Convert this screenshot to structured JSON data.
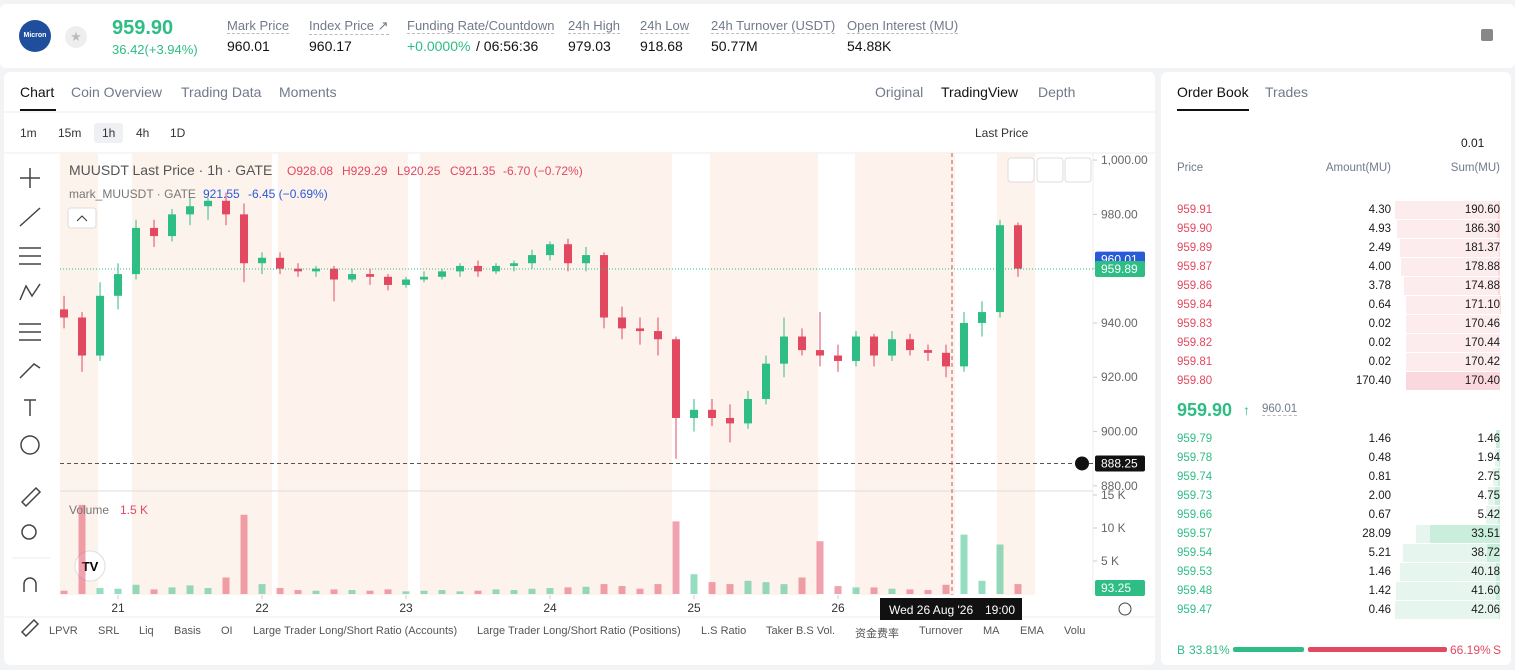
{
  "header": {
    "logo": "Micron",
    "price": "959.90",
    "change": "36.42(+3.94%)",
    "stats": [
      {
        "label": "Mark Price",
        "value": "960.01"
      },
      {
        "label": "Index Price ↗",
        "value": "960.17"
      },
      {
        "label": "Funding Rate/Countdown",
        "value": "+0.0000%",
        "extra": "/ 06:56:36"
      },
      {
        "label": "24h High",
        "value": "979.03"
      },
      {
        "label": "24h Low",
        "value": "918.68"
      },
      {
        "label": "24h Turnover (USDT)",
        "value": "50.77M"
      },
      {
        "label": "Open Interest (MU)",
        "value": "54.88K"
      }
    ]
  },
  "tabs": [
    "Chart",
    "Coin Overview",
    "Trading Data",
    "Moments"
  ],
  "views": [
    "Original",
    "TradingView",
    "Depth"
  ],
  "intervals": [
    "1m",
    "15m",
    "1h",
    "4h",
    "1D"
  ],
  "price_source": "Last Price",
  "indicators": [
    "LPVR",
    "SRL",
    "Liq",
    "Basis",
    "OI",
    "Large Trader Long/Short Ratio (Accounts)",
    "Large Trader Long/Short Ratio (Positions)",
    "L.S Ratio",
    "Taker B.S Vol.",
    "资金费率",
    "Turnover",
    "MA",
    "EMA",
    "Volu"
  ],
  "chart_data": {
    "type": "candlestick",
    "title": "MUUSDT Last Price · 1h · GATE",
    "ohlc_legend": [
      "O928.08",
      "H929.29",
      "L920.25",
      "C921.35",
      "-6.70 (−0.72%)"
    ],
    "mark_legend": [
      "mark_MUUSDT · GATE",
      "921.55",
      "-6.45 (−0.69%)"
    ],
    "volume_label": "Volume",
    "volume_value": "1.5 K",
    "up_color": "#2ebd85",
    "down_color": "#e2485f",
    "x": [
      15,
      18,
      21,
      24,
      27,
      30,
      33,
      36,
      39,
      42,
      45,
      48,
      51,
      54,
      57,
      60,
      63,
      66,
      69,
      72,
      75,
      78,
      81,
      84,
      87,
      90,
      93,
      96,
      99,
      102,
      105,
      108,
      111,
      114,
      117,
      120,
      123,
      126,
      129,
      132,
      135,
      138,
      141,
      144,
      147,
      150,
      153,
      156,
      159,
      162,
      165,
      168,
      171,
      174
    ],
    "xlim": [
      14.33,
      186.5
    ],
    "xticks": [
      {
        "value": 24,
        "label": "21"
      },
      {
        "value": 48,
        "label": "22"
      },
      {
        "value": 72,
        "label": "23"
      },
      {
        "value": 96,
        "label": "24"
      },
      {
        "value": 120,
        "label": "25"
      },
      {
        "value": 144,
        "label": "26"
      }
    ],
    "open": [
      945,
      942,
      928,
      950,
      958,
      975,
      972,
      980,
      983,
      985,
      980,
      962,
      964,
      960,
      959,
      960,
      956,
      958,
      957,
      954,
      956,
      957,
      959,
      961,
      959,
      961,
      962,
      965,
      969,
      962,
      965,
      942,
      938,
      937,
      934,
      905,
      908,
      905,
      903,
      912,
      925,
      935,
      930,
      928,
      926,
      935,
      928,
      934,
      930,
      929,
      924,
      940,
      944,
      976
    ],
    "high": [
      950,
      944,
      955,
      962,
      978,
      978,
      982,
      986,
      986,
      988,
      984,
      966,
      966,
      962,
      961,
      961,
      960,
      960,
      958,
      957,
      959,
      960,
      962,
      963,
      962,
      963,
      967,
      970,
      971,
      968,
      966,
      946,
      942,
      942,
      935,
      912,
      912,
      910,
      915,
      928,
      942,
      938,
      944,
      932,
      937,
      936,
      937,
      936,
      932,
      932,
      944,
      948,
      978,
      977
    ],
    "low": [
      938,
      922,
      926,
      945,
      956,
      968,
      970,
      976,
      978,
      976,
      955,
      958,
      958,
      957,
      957,
      948,
      955,
      954,
      952,
      953,
      955,
      956,
      957,
      957,
      958,
      959,
      960,
      963,
      959,
      959,
      938,
      934,
      932,
      928,
      890,
      900,
      902,
      896,
      901,
      910,
      920,
      928,
      924,
      922,
      924,
      924,
      926,
      928,
      926,
      920,
      922,
      935,
      942,
      957
    ],
    "close": [
      942,
      928,
      950,
      958,
      975,
      972,
      980,
      983,
      985,
      980,
      962,
      964,
      960,
      959,
      960,
      956,
      958,
      957,
      954,
      956,
      957,
      959,
      961,
      959,
      961,
      962,
      965,
      969,
      962,
      965,
      942,
      938,
      937,
      934,
      905,
      908,
      905,
      903,
      912,
      925,
      935,
      930,
      928,
      926,
      935,
      928,
      934,
      930,
      929,
      924,
      940,
      944,
      976,
      960
    ],
    "volume": [
      500,
      13500,
      900,
      800,
      1400,
      700,
      1000,
      1300,
      900,
      2500,
      12000,
      1500,
      900,
      600,
      500,
      700,
      600,
      500,
      700,
      400,
      500,
      600,
      400,
      500,
      700,
      600,
      800,
      900,
      1000,
      1100,
      1500,
      1200,
      800,
      1500,
      11000,
      3000,
      1800,
      1500,
      2000,
      1800,
      1500,
      2500,
      8000,
      1200,
      1000,
      1000,
      800,
      700,
      600,
      1400,
      9000,
      2000,
      7500,
      1500
    ],
    "ylim": [
      878.1,
      1002.6
    ],
    "yticks": [
      {
        "value": 880,
        "label": "880.00"
      },
      {
        "value": 900,
        "label": "900.00"
      },
      {
        "value": 920,
        "label": "920.00"
      },
      {
        "value": 940,
        "label": "940.00"
      },
      {
        "value": 960,
        "label": "960.00"
      },
      {
        "value": 980,
        "label": "980.00"
      },
      {
        "value": 1000,
        "label": "1,000.00"
      }
    ],
    "vlim": [
      0,
      15000
    ],
    "vticks": [
      {
        "value": 5000,
        "label": "5 K"
      },
      {
        "value": 10000,
        "label": "10 K"
      },
      {
        "value": 15000,
        "label": "15 K"
      }
    ],
    "mark_price": {
      "value": 960.01,
      "label": "960.01"
    },
    "last_price": {
      "value": 959.89,
      "label": "959.89"
    },
    "crosshair": {
      "value": 888.25,
      "label": "888.25",
      "x": 163,
      "date": "Wed 26 Aug '26",
      "time": "19:00"
    },
    "volume_tag": "93.25"
  },
  "order_book": {
    "tabs": [
      "Order Book",
      "Trades"
    ],
    "precision": "0.01",
    "columns": [
      "Price",
      "Amount(MU)",
      "Sum(MU)"
    ],
    "asks": [
      [
        "959.91",
        "4.30",
        "190.60"
      ],
      [
        "959.90",
        "4.93",
        "186.30"
      ],
      [
        "959.89",
        "2.49",
        "181.37"
      ],
      [
        "959.87",
        "4.00",
        "178.88"
      ],
      [
        "959.86",
        "3.78",
        "174.88"
      ],
      [
        "959.84",
        "0.64",
        "171.10"
      ],
      [
        "959.83",
        "0.02",
        "170.46"
      ],
      [
        "959.82",
        "0.02",
        "170.44"
      ],
      [
        "959.81",
        "0.02",
        "170.42"
      ],
      [
        "959.80",
        "170.40",
        "170.40"
      ]
    ],
    "mid": "959.90",
    "mid_mark": "960.01",
    "bids": [
      [
        "959.79",
        "1.46",
        "1.46"
      ],
      [
        "959.78",
        "0.48",
        "1.94"
      ],
      [
        "959.74",
        "0.81",
        "2.75"
      ],
      [
        "959.73",
        "2.00",
        "4.75"
      ],
      [
        "959.66",
        "0.67",
        "5.42"
      ],
      [
        "959.57",
        "28.09",
        "33.51"
      ],
      [
        "959.54",
        "5.21",
        "38.72"
      ],
      [
        "959.53",
        "1.46",
        "40.18"
      ],
      [
        "959.48",
        "1.42",
        "41.60"
      ],
      [
        "959.47",
        "0.46",
        "42.06"
      ]
    ],
    "buy": "B",
    "buy_pct": "33.81%",
    "sell_pct": "66.19%",
    "sell": "S"
  }
}
